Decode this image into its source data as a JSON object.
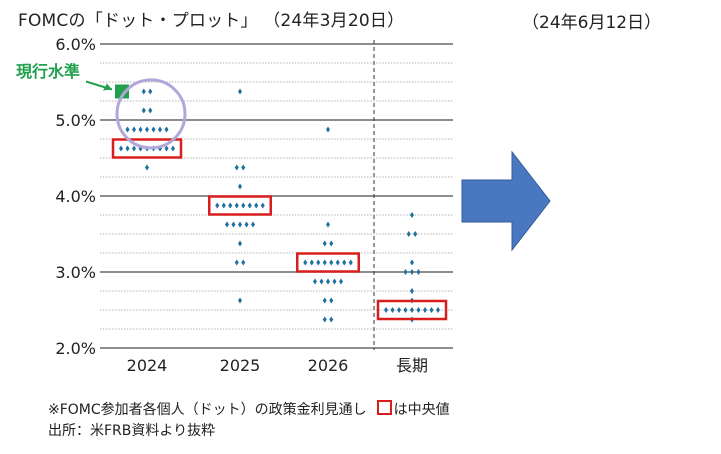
{
  "header": {
    "title": "FOMCの「ドット・プロット」",
    "date_left": "（24年3月20日）",
    "date_right": "（24年6月12日）"
  },
  "annotation": {
    "current_level_label": "現行水準"
  },
  "notes": {
    "line1_prefix": "※FOMC参加者各個人（ドット）の政策金利見通し",
    "line1_suffix": "は中央値",
    "line2": "出所：米FRB資料より抜粋"
  },
  "colors": {
    "dot": "#1f6fa0",
    "median_box": "#d81e1e",
    "current": "#22a050",
    "arrow": "#4a78c0",
    "circle": "#b3a6d8"
  },
  "chart_data": {
    "type": "scatter",
    "title": "FOMCの「ドット・プロット」",
    "categories": [
      "2024",
      "2025",
      "2026",
      "長期"
    ],
    "ytick_labels": [
      "2.0%",
      "3.0%",
      "4.0%",
      "5.0%",
      "6.0%"
    ],
    "ylim": [
      2.0,
      6.0
    ],
    "grid": true,
    "current_level": 5.375,
    "dots": [
      {
        "category": "2024",
        "points": [
          [
            5.375,
            2
          ],
          [
            5.125,
            2
          ],
          [
            4.875,
            7
          ],
          [
            4.625,
            9
          ],
          [
            4.375,
            1
          ]
        ],
        "median": 4.625
      },
      {
        "category": "2025",
        "points": [
          [
            5.375,
            1
          ],
          [
            4.375,
            2
          ],
          [
            4.125,
            1
          ],
          [
            3.875,
            8
          ],
          [
            3.625,
            5
          ],
          [
            3.375,
            1
          ],
          [
            3.125,
            2
          ],
          [
            2.625,
            1
          ]
        ],
        "median": 3.875
      },
      {
        "category": "2026",
        "points": [
          [
            4.875,
            1
          ],
          [
            3.625,
            1
          ],
          [
            3.375,
            2
          ],
          [
            3.125,
            8
          ],
          [
            2.875,
            5
          ],
          [
            2.625,
            2
          ],
          [
            2.375,
            2
          ]
        ],
        "median": 3.125
      },
      {
        "category": "長期",
        "points": [
          [
            3.75,
            1
          ],
          [
            3.5,
            2
          ],
          [
            3.125,
            1
          ],
          [
            3.0,
            3
          ],
          [
            2.75,
            1
          ],
          [
            2.625,
            1
          ],
          [
            2.5,
            9
          ],
          [
            2.375,
            1
          ]
        ],
        "median": 2.5
      }
    ]
  }
}
